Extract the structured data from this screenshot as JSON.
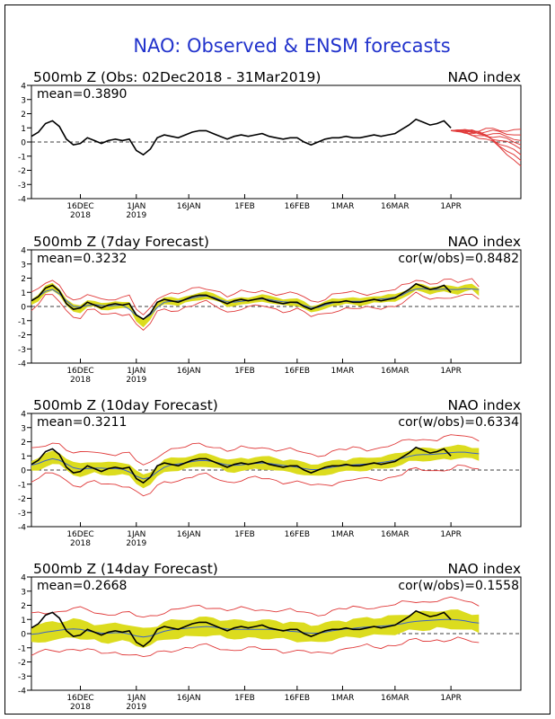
{
  "title": "NAO: Observed & ENSM forecasts",
  "colors": {
    "title": "#2233cc",
    "observed": "#000000",
    "forecast_red": "#e03a3a",
    "ensemble_mean": "#3a63c8",
    "spread_fill": "#dcdc1e",
    "frame": "#000000"
  },
  "x_ticks": [
    {
      "label": "16DEC",
      "sub": "2018",
      "day": 14
    },
    {
      "label": "1JAN",
      "sub": "2019",
      "day": 30
    },
    {
      "label": "16JAN",
      "sub": "",
      "day": 45
    },
    {
      "label": "1FEB",
      "sub": "",
      "day": 61
    },
    {
      "label": "16FEB",
      "sub": "",
      "day": 76
    },
    {
      "label": "1MAR",
      "sub": "",
      "day": 89
    },
    {
      "label": "16MAR",
      "sub": "",
      "day": 104
    },
    {
      "label": "1APR",
      "sub": "",
      "day": 120
    }
  ],
  "y_ticks": [
    "4",
    "3",
    "2",
    "1",
    "0",
    "-1",
    "-2",
    "-3",
    "-4"
  ],
  "panels": [
    {
      "left": "500mb Z (Obs: 02Dec2018 - 31Mar2019)",
      "right": "NAO index",
      "mean": "mean=0.3890",
      "cor": ""
    },
    {
      "left": "500mb Z (7day Forecast)",
      "right": "NAO index",
      "mean": "mean=0.3232",
      "cor": "cor(w/obs)=0.8482"
    },
    {
      "left": "500mb Z (10day Forecast)",
      "right": "NAO index",
      "mean": "mean=0.3211",
      "cor": "cor(w/obs)=0.6334"
    },
    {
      "left": "500mb Z (14day Forecast)",
      "right": "NAO index",
      "mean": "mean=0.2668",
      "cor": "cor(w/obs)=0.1558"
    }
  ],
  "chart_data": {
    "type": "line",
    "x_unit": "days since 02Dec2018",
    "xlim": [
      0,
      140
    ],
    "ylim": [
      -4,
      4
    ],
    "observed": {
      "x": [
        0,
        2,
        4,
        6,
        8,
        10,
        12,
        14,
        16,
        18,
        20,
        22,
        24,
        26,
        28,
        30,
        32,
        34,
        36,
        38,
        40,
        42,
        44,
        46,
        48,
        50,
        52,
        54,
        56,
        58,
        60,
        62,
        64,
        66,
        68,
        70,
        72,
        74,
        76,
        78,
        80,
        82,
        84,
        86,
        88,
        90,
        92,
        94,
        96,
        98,
        100,
        102,
        104,
        106,
        108,
        110,
        112,
        114,
        116,
        118,
        120
      ],
      "y": [
        0.4,
        0.7,
        1.3,
        1.5,
        1.1,
        0.2,
        -0.2,
        -0.1,
        0.3,
        0.1,
        -0.1,
        0.1,
        0.2,
        0.1,
        0.2,
        -0.6,
        -0.9,
        -0.5,
        0.3,
        0.5,
        0.4,
        0.3,
        0.5,
        0.7,
        0.8,
        0.8,
        0.6,
        0.4,
        0.2,
        0.4,
        0.5,
        0.4,
        0.5,
        0.6,
        0.4,
        0.3,
        0.2,
        0.3,
        0.3,
        0.0,
        -0.2,
        0.0,
        0.2,
        0.3,
        0.3,
        0.4,
        0.3,
        0.3,
        0.4,
        0.5,
        0.4,
        0.5,
        0.6,
        0.9,
        1.2,
        1.6,
        1.4,
        1.2,
        1.3,
        1.5,
        1.0
      ]
    },
    "obs_panel_forecast_members_start": {
      "x": 120,
      "y": 0.8
    },
    "obs_panel_forecast_members_end_day": 140,
    "obs_panel_forecast_member_endpoints": [
      -1.7,
      -1.3,
      -0.9,
      -0.5,
      -0.2,
      0.1,
      0.5,
      0.9
    ],
    "forecast_panels": [
      {
        "lead": "7day",
        "forecast": [
          0.3,
          0.6,
          1.2,
          1.4,
          1.0,
          0.3,
          -0.1,
          -0.2,
          0.2,
          0.2,
          0.0,
          0.0,
          0.1,
          0.1,
          0.1,
          -0.8,
          -1.2,
          -0.7,
          0.1,
          0.4,
          0.4,
          0.3,
          0.5,
          0.6,
          0.7,
          0.8,
          0.7,
          0.5,
          0.2,
          0.3,
          0.4,
          0.4,
          0.5,
          0.6,
          0.5,
          0.4,
          0.3,
          0.3,
          0.3,
          0.1,
          -0.2,
          -0.1,
          0.1,
          0.3,
          0.3,
          0.4,
          0.4,
          0.3,
          0.4,
          0.5,
          0.5,
          0.6,
          0.6,
          0.8,
          1.0,
          1.4,
          1.3,
          1.1,
          1.2,
          1.3,
          1.2,
          1.1,
          1.3,
          1.4,
          1.0
        ],
        "spread_halfwidth": 0.25,
        "envelope_halfwidth": 0.55
      },
      {
        "lead": "10day",
        "forecast": [
          0.3,
          0.4,
          0.7,
          0.9,
          0.8,
          0.4,
          0.1,
          0.0,
          0.1,
          0.2,
          0.1,
          0.1,
          0.1,
          0.1,
          0.0,
          -0.5,
          -0.8,
          -0.6,
          -0.1,
          0.3,
          0.4,
          0.4,
          0.5,
          0.6,
          0.7,
          0.7,
          0.6,
          0.5,
          0.3,
          0.3,
          0.4,
          0.4,
          0.5,
          0.5,
          0.5,
          0.4,
          0.3,
          0.3,
          0.2,
          0.1,
          0.0,
          0.0,
          0.1,
          0.2,
          0.3,
          0.3,
          0.4,
          0.4,
          0.4,
          0.5,
          0.5,
          0.6,
          0.7,
          0.8,
          1.0,
          1.1,
          1.1,
          1.1,
          1.1,
          1.2,
          1.2,
          1.3,
          1.3,
          1.2,
          1.1
        ],
        "spread_halfwidth": 0.45,
        "envelope_halfwidth": 1.1
      },
      {
        "lead": "14day",
        "forecast": [
          -0.1,
          0.0,
          0.1,
          0.2,
          0.2,
          0.3,
          0.4,
          0.3,
          0.2,
          0.1,
          0.0,
          0.0,
          0.1,
          0.1,
          0.0,
          -0.2,
          -0.3,
          -0.2,
          0.0,
          0.2,
          0.3,
          0.3,
          0.4,
          0.4,
          0.5,
          0.5,
          0.5,
          0.4,
          0.3,
          0.3,
          0.3,
          0.3,
          0.3,
          0.3,
          0.3,
          0.3,
          0.2,
          0.2,
          0.1,
          0.1,
          0.0,
          0.0,
          0.1,
          0.2,
          0.3,
          0.3,
          0.4,
          0.4,
          0.5,
          0.5,
          0.5,
          0.6,
          0.6,
          0.7,
          0.8,
          0.9,
          0.9,
          0.9,
          1.0,
          1.0,
          1.0,
          1.0,
          0.9,
          0.8,
          0.7
        ],
        "spread_halfwidth": 0.65,
        "envelope_halfwidth": 1.4
      }
    ]
  }
}
